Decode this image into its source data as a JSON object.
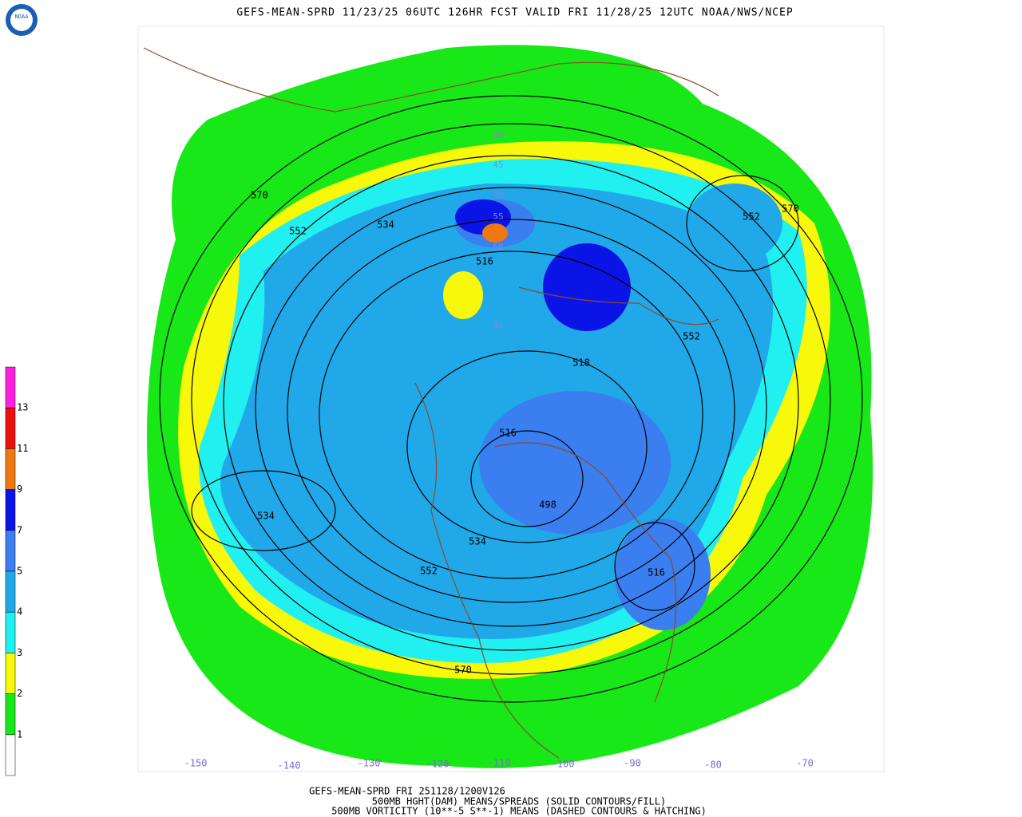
{
  "header": {
    "title": "GEFS-MEAN-SPRD 11/23/25 06UTC 126HR FCST VALID FRI 11/28/25 12UTC NOAA/NWS/NCEP",
    "logo": "NOAA"
  },
  "legend": {
    "labels": [
      "13",
      "11",
      "9",
      "7",
      "5",
      "4",
      "3",
      "2",
      "1"
    ],
    "colors": [
      "#ff20e0",
      "#ee1010",
      "#f07810",
      "#0a14e6",
      "#3a7ef0",
      "#20a8e8",
      "#20f0f0",
      "#f8f80a",
      "#18e818",
      "#ffffff"
    ]
  },
  "map": {
    "longitude_labels": [
      "-150",
      "-140",
      "-130",
      "-120",
      "-110",
      "-100",
      "-90",
      "-80",
      "-70"
    ],
    "latitude_labels": [
      "45",
      "50",
      "40",
      "45",
      "55",
      "60"
    ],
    "contour_labels": [
      "570",
      "552",
      "534",
      "516",
      "518",
      "552",
      "570",
      "552",
      "516",
      "498",
      "534",
      "552",
      "534",
      "516",
      "570"
    ]
  },
  "footer": {
    "lines": [
      "GEFS-MEAN-SPRD FRI 251128/1200V126",
      "500MB HGHT(DAM) MEANS/SPREADS (SOLID CONTOURS/FILL)",
      "500MB VORTICITY (10**-5 S**-1) MEANS (DASHED CONTOURS & HATCHING)"
    ]
  }
}
